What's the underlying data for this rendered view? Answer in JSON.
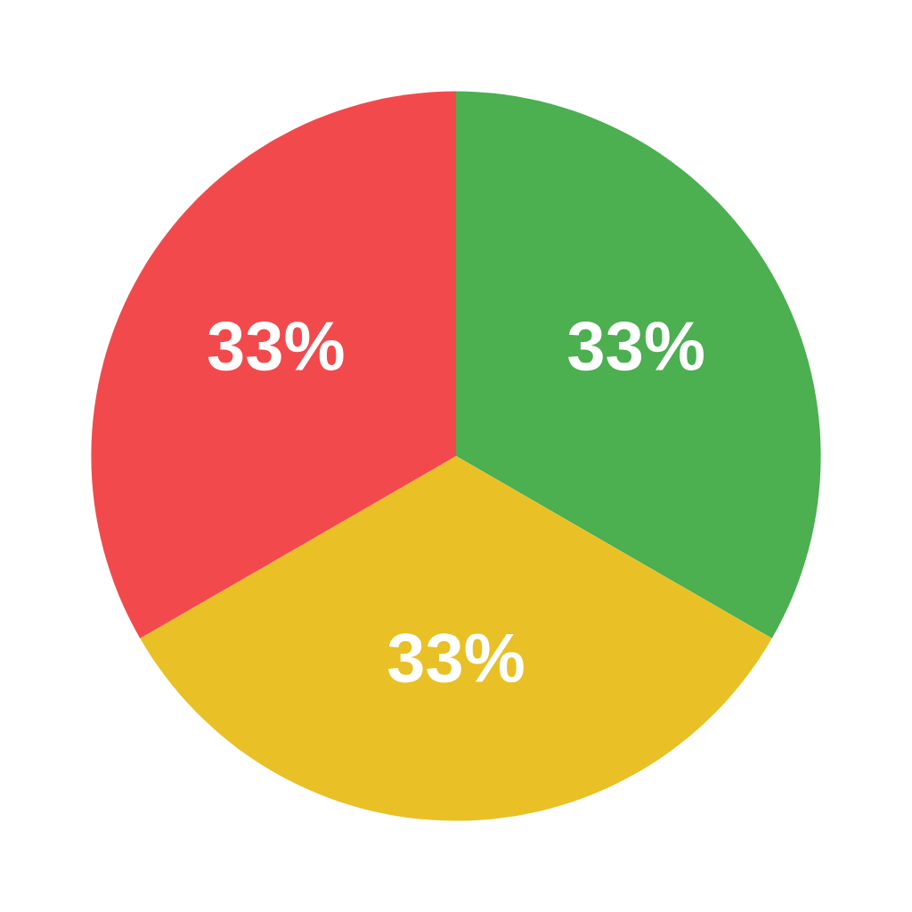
{
  "chart_data": {
    "type": "pie",
    "categories": [
      null,
      null,
      null
    ],
    "values": [
      33,
      33,
      33
    ],
    "value_labels": [
      "33%",
      "33%",
      "33%"
    ],
    "colors": [
      "#4caf50",
      "#e9c025",
      "#f24a4c"
    ]
  }
}
